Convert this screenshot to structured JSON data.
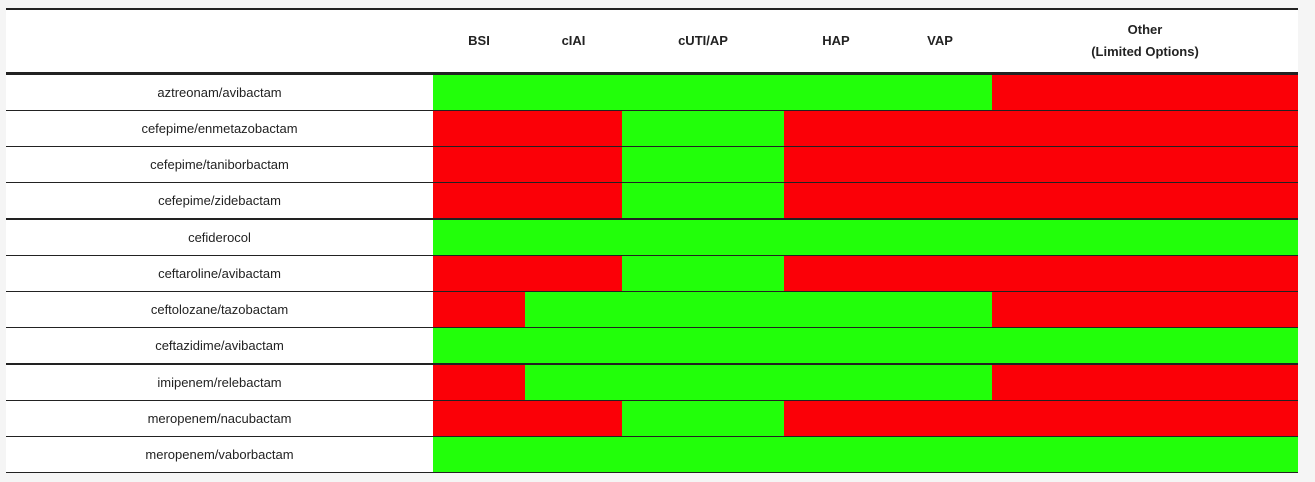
{
  "colors": {
    "recommended": "#22ff0a",
    "not_recommended": "#fb0007"
  },
  "columns": [
    "BSI",
    "cIAI",
    "cUTI/AP",
    "HAP",
    "VAP",
    "Other\n(Limited Options)"
  ],
  "rows": [
    {
      "drug": "aztreonam/avibactam",
      "status": [
        "G",
        "G",
        "G",
        "G",
        "G",
        "R"
      ]
    },
    {
      "drug": "cefepime/enmetazobactam",
      "status": [
        "R",
        "R",
        "G",
        "R",
        "R",
        "R"
      ]
    },
    {
      "drug": "cefepime/taniborbactam",
      "status": [
        "R",
        "R",
        "G",
        "R",
        "R",
        "R"
      ]
    },
    {
      "drug": "cefepime/zidebactam",
      "status": [
        "R",
        "R",
        "G",
        "R",
        "R",
        "R"
      ],
      "group_end": true
    },
    {
      "drug": "cefiderocol",
      "status": [
        "G",
        "G",
        "G",
        "G",
        "G",
        "G"
      ]
    },
    {
      "drug": "ceftaroline/avibactam",
      "status": [
        "R",
        "R",
        "G",
        "R",
        "R",
        "R"
      ]
    },
    {
      "drug": "ceftolozane/tazobactam",
      "status": [
        "R",
        "G",
        "G",
        "G",
        "G",
        "R"
      ]
    },
    {
      "drug": "ceftazidime/avibactam",
      "status": [
        "G",
        "G",
        "G",
        "G",
        "G",
        "G"
      ],
      "group_end": true
    },
    {
      "drug": "imipenem/relebactam",
      "status": [
        "R",
        "G",
        "G",
        "G",
        "G",
        "R"
      ]
    },
    {
      "drug": "meropenem/nacubactam",
      "status": [
        "R",
        "R",
        "G",
        "R",
        "R",
        "R"
      ]
    },
    {
      "drug": "meropenem/vaborbactam",
      "status": [
        "G",
        "G",
        "G",
        "G",
        "G",
        "G"
      ]
    }
  ]
}
